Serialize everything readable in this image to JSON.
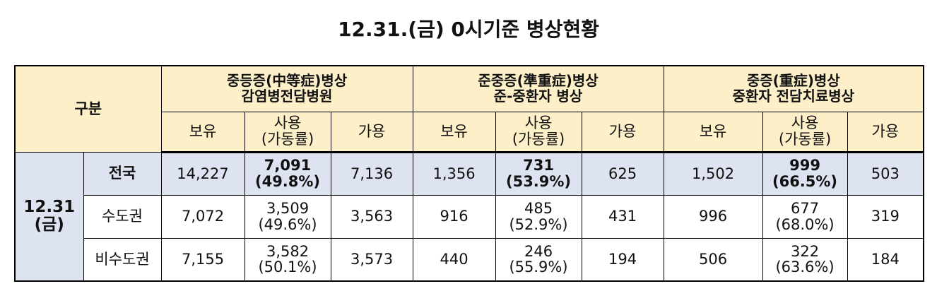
{
  "title": "12.31.(금) 0시기준 병상현황",
  "header": {
    "corner": "구분",
    "groups": [
      {
        "lines": [
          "중등증(中等症)병상",
          "감염병전담병원"
        ],
        "columns": [
          [
            "보유"
          ],
          [
            "사용",
            "(가동률)"
          ],
          [
            "가용"
          ]
        ]
      },
      {
        "lines": [
          "준중증(準重症)병상",
          "준-중환자 병상"
        ],
        "columns": [
          [
            "보유"
          ],
          [
            "사용",
            "(가동률)"
          ],
          [
            "가용"
          ]
        ]
      },
      {
        "lines": [
          "중증(重症)병상",
          "중환자 전담치료병상"
        ],
        "columns": [
          [
            "보유"
          ],
          [
            "사용",
            "(가동률)"
          ],
          [
            "가용"
          ]
        ]
      }
    ]
  },
  "date": [
    "12.31",
    "(금)"
  ],
  "rows": [
    {
      "label": "전국",
      "cells": [
        "14,227",
        [
          "7,091",
          "(49.8%)"
        ],
        "7,136",
        "1,356",
        [
          "731",
          "(53.9%)"
        ],
        "625",
        "1,502",
        [
          "999",
          "(66.5%)"
        ],
        "503"
      ]
    },
    {
      "label": "수도권",
      "cells": [
        "7,072",
        [
          "3,509",
          "(49.6%)"
        ],
        "3,563",
        "916",
        [
          "485",
          "(52.9%)"
        ],
        "431",
        "996",
        [
          "677",
          "(68.0%)"
        ],
        "319"
      ]
    },
    {
      "label": "비수도권",
      "cells": [
        "7,155",
        [
          "3,582",
          "(50.1%)"
        ],
        "3,573",
        "440",
        [
          "246",
          "(55.9%)"
        ],
        "194",
        "506",
        [
          "322",
          "(63.6%)"
        ],
        "184"
      ]
    }
  ]
}
